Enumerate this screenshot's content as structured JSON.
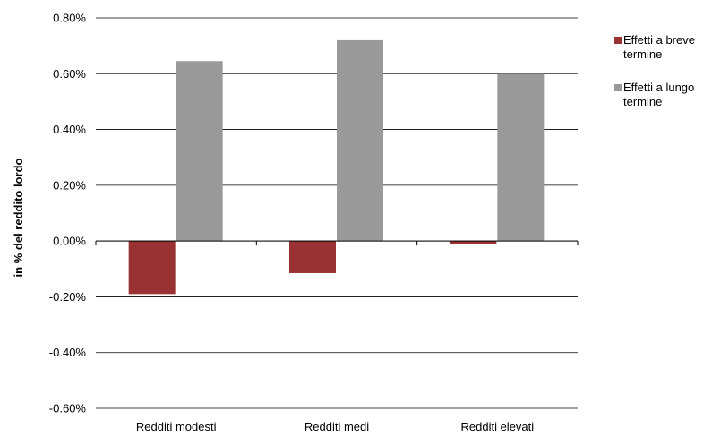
{
  "chart_data": {
    "type": "bar",
    "title": "",
    "xlabel": "",
    "ylabel": "in % del reddito lordo",
    "categories": [
      "Redditi modesti",
      "Redditi medi",
      "Redditi elevati"
    ],
    "series": [
      {
        "name": "Effetti a breve termine",
        "color": "#993333",
        "values": [
          -0.0019,
          -0.00115,
          -0.0001
        ]
      },
      {
        "name": "Effetti a lungo termine",
        "color": "#999999",
        "values": [
          0.00645,
          0.0072,
          0.006
        ]
      }
    ],
    "ylim": [
      -0.006,
      0.008
    ],
    "yticks": [
      0.008,
      0.006,
      0.004,
      0.002,
      0.0,
      -0.002,
      -0.004,
      -0.006
    ],
    "ytick_labels": [
      "0.80%",
      "0.60%",
      "0.40%",
      "0.20%",
      "0.00%",
      "-0.20%",
      "-0.40%",
      "-0.60%"
    ],
    "grid": true,
    "legend_position": "right"
  }
}
